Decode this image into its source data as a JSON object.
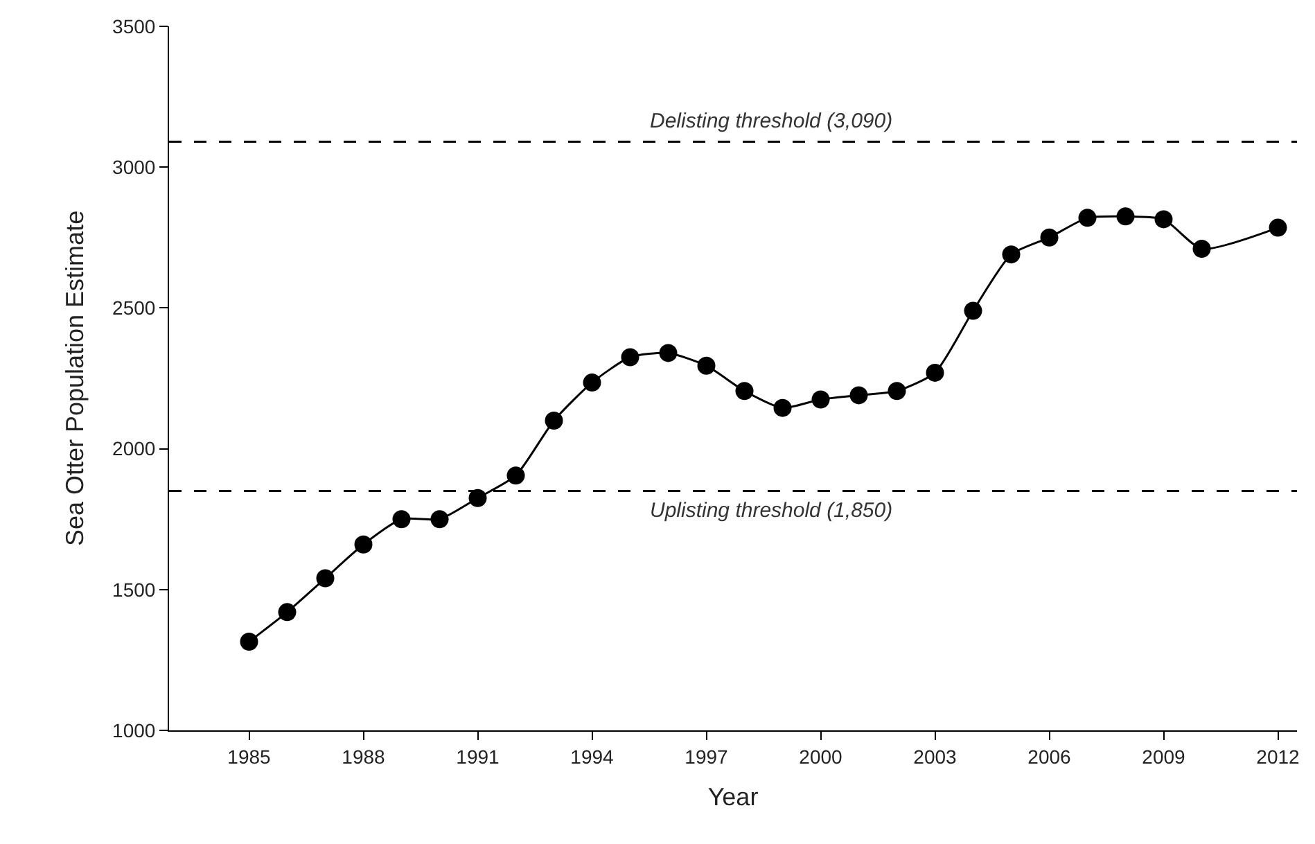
{
  "chart_data": {
    "type": "line",
    "xlabel": "Year",
    "ylabel": "Sea Otter Population Estimate",
    "x": [
      1985,
      1986,
      1987,
      1988,
      1989,
      1990,
      1991,
      1992,
      1993,
      1994,
      1995,
      1996,
      1997,
      1998,
      1999,
      2000,
      2001,
      2002,
      2003,
      2004,
      2005,
      2006,
      2007,
      2008,
      2009,
      2010,
      2012
    ],
    "series": [
      {
        "color": "#000000",
        "values": [
          1315,
          1420,
          1540,
          1660,
          1750,
          1750,
          1825,
          1905,
          2100,
          2235,
          2325,
          2340,
          2295,
          2205,
          2145,
          2175,
          2190,
          2205,
          2270,
          2490,
          2690,
          2750,
          2820,
          2825,
          2815,
          2710,
          2785
        ]
      }
    ],
    "xlim": [
      1982.9,
      2012.5
    ],
    "xticks": [
      1985,
      1988,
      1991,
      1994,
      1997,
      2000,
      2003,
      2006,
      2009,
      2012
    ],
    "ylim": [
      1000,
      3500
    ],
    "yticks": [
      1000,
      1500,
      2000,
      2500,
      3000,
      3500
    ],
    "ref_lines": [
      {
        "axis": "y",
        "value": 3090,
        "label": "Delisting threshold (3,090)",
        "color": "#000000",
        "line_style": "dashed"
      },
      {
        "axis": "y",
        "value": 1850,
        "label": "Uplisting threshold (1,850)",
        "color": "#000000",
        "line_style": "dashed"
      }
    ],
    "marker": "circle",
    "line_style": "solid"
  }
}
